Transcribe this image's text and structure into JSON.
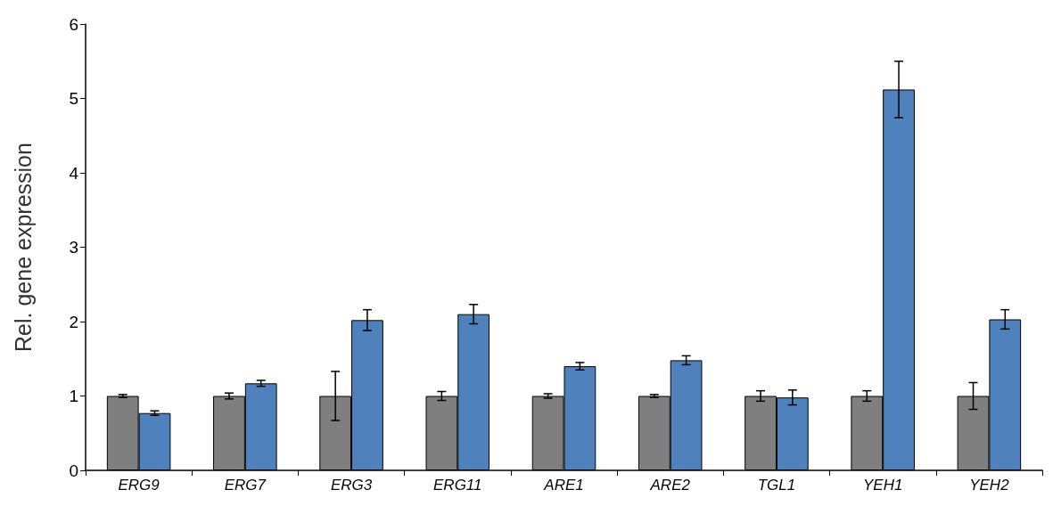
{
  "chart_data": {
    "type": "bar",
    "ylabel": "Rel. gene expression",
    "categories": [
      "ERG9",
      "ERG7",
      "ERG3",
      "ERG11",
      "ARE1",
      "ARE2",
      "TGL1",
      "YEH1",
      "YEH2"
    ],
    "series": [
      {
        "color": "#7f7f7f",
        "values": [
          1.0,
          1.0,
          1.0,
          1.0,
          1.0,
          1.0,
          1.0,
          1.0,
          1.0
        ],
        "errors": [
          0.02,
          0.04,
          0.33,
          0.06,
          0.03,
          0.02,
          0.07,
          0.07,
          0.18
        ]
      },
      {
        "color": "#4f81bd",
        "values": [
          0.77,
          1.17,
          2.02,
          2.1,
          1.4,
          1.48,
          0.98,
          5.12,
          2.03
        ],
        "errors": [
          0.03,
          0.04,
          0.14,
          0.13,
          0.05,
          0.06,
          0.1,
          0.38,
          0.13
        ]
      }
    ],
    "ylim": [
      0,
      6
    ],
    "yticks": [
      0,
      1,
      2,
      3,
      4,
      5,
      6
    ],
    "grid": false
  }
}
